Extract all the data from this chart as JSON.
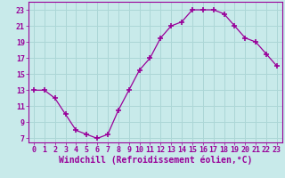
{
  "x": [
    0,
    1,
    2,
    3,
    4,
    5,
    6,
    7,
    8,
    9,
    10,
    11,
    12,
    13,
    14,
    15,
    16,
    17,
    18,
    19,
    20,
    21,
    22,
    23
  ],
  "y": [
    13,
    13,
    12,
    10,
    8,
    7.5,
    7,
    7.5,
    10.5,
    13,
    15.5,
    17,
    19.5,
    21,
    21.5,
    23,
    23,
    23,
    22.5,
    21,
    19.5,
    19,
    17.5,
    16
  ],
  "line_color": "#990099",
  "marker": "+",
  "marker_size": 5,
  "bg_color": "#c8eaea",
  "grid_color": "#acd6d6",
  "xlabel": "Windchill (Refroidissement éolien,°C)",
  "xlabel_fontsize": 7,
  "tick_label_color": "#990099",
  "tick_fontsize": 6,
  "ylim": [
    6.5,
    24
  ],
  "xlim": [
    -0.5,
    23.5
  ],
  "yticks": [
    7,
    9,
    11,
    13,
    15,
    17,
    19,
    21,
    23
  ],
  "xticks": [
    0,
    1,
    2,
    3,
    4,
    5,
    6,
    7,
    8,
    9,
    10,
    11,
    12,
    13,
    14,
    15,
    16,
    17,
    18,
    19,
    20,
    21,
    22,
    23
  ]
}
